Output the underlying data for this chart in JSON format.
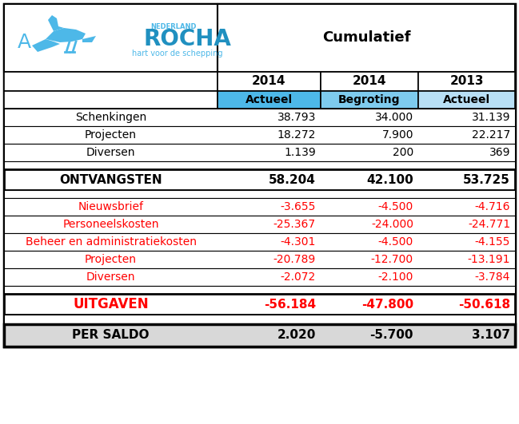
{
  "cumul_header": "Cumulatief",
  "col_year_headers": [
    "2014",
    "2014",
    "2013"
  ],
  "col_sub_headers": [
    "Actueel",
    "Begroting",
    "Actueel"
  ],
  "income_rows": [
    [
      "Schenkingen",
      "38.793",
      "34.000",
      "31.139"
    ],
    [
      "Projecten",
      "18.272",
      "7.900",
      "22.217"
    ],
    [
      "Diversen",
      "1.139",
      "200",
      "369"
    ]
  ],
  "ontvangsten_row": [
    "ONTVANGSTEN",
    "58.204",
    "42.100",
    "53.725"
  ],
  "expense_rows": [
    [
      "Nieuwsbrief",
      "-3.655",
      "-4.500",
      "-4.716"
    ],
    [
      "Personeelskosten",
      "-25.367",
      "-24.000",
      "-24.771"
    ],
    [
      "Beheer en administratiekosten",
      "-4.301",
      "-4.500",
      "-4.155"
    ],
    [
      "Projecten",
      "-20.789",
      "-12.700",
      "-13.191"
    ],
    [
      "Diversen",
      "-2.072",
      "-2.100",
      "-3.784"
    ]
  ],
  "uitgaven_row": [
    "UITGAVEN",
    "-56.184",
    "-47.800",
    "-50.618"
  ],
  "saldo_row": [
    "PER SALDO",
    "2.020",
    "-5.700",
    "3.107"
  ],
  "color_blue_dark": "#4db8e8",
  "color_blue_medium": "#7ecbee",
  "color_blue_light": "#b8dff5",
  "color_red": "#ff0000",
  "color_black": "#000000",
  "color_white": "#ffffff",
  "color_light_gray": "#d8d8d8",
  "logo_text_color": "#3ab0e0",
  "logo_rocha_color": "#2090c0"
}
